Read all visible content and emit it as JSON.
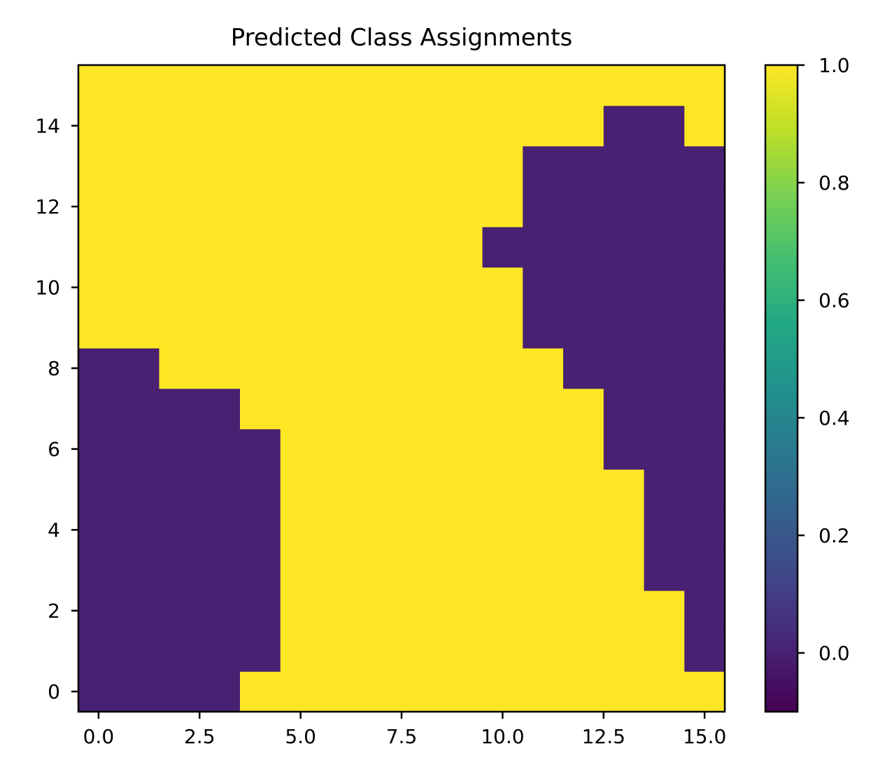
{
  "chart_data": {
    "type": "heatmap",
    "title": "Predicted Class Assignments",
    "xlabel": "",
    "ylabel": "",
    "origin": "lower",
    "xlim": [
      -0.5,
      15.5
    ],
    "ylim": [
      -0.5,
      15.5
    ],
    "x_ticks": [
      0.0,
      2.5,
      5.0,
      7.5,
      10.0,
      12.5,
      15.0
    ],
    "x_tick_labels": [
      "0.0",
      "2.5",
      "5.0",
      "7.5",
      "10.0",
      "12.5",
      "15.0"
    ],
    "y_ticks": [
      0,
      2,
      4,
      6,
      8,
      10,
      12,
      14
    ],
    "y_tick_labels": [
      "0",
      "2",
      "4",
      "6",
      "8",
      "10",
      "12",
      "14"
    ],
    "colormap": "viridis",
    "clim": [
      -0.1,
      1.0
    ],
    "colorbar_ticks": [
      0.0,
      0.2,
      0.4,
      0.6,
      0.8,
      1.0
    ],
    "colorbar_tick_labels": [
      "0.0",
      "0.2",
      "0.4",
      "0.6",
      "0.8",
      "1.0"
    ],
    "class_colors": {
      "0": "#482173",
      "1": "#fde725"
    },
    "grid": [
      [
        0,
        0,
        0,
        0,
        1,
        1,
        1,
        1,
        1,
        1,
        1,
        1,
        1,
        1,
        1,
        1
      ],
      [
        0,
        0,
        0,
        0,
        0,
        1,
        1,
        1,
        1,
        1,
        1,
        1,
        1,
        1,
        1,
        0
      ],
      [
        0,
        0,
        0,
        0,
        0,
        1,
        1,
        1,
        1,
        1,
        1,
        1,
        1,
        1,
        1,
        0
      ],
      [
        0,
        0,
        0,
        0,
        0,
        1,
        1,
        1,
        1,
        1,
        1,
        1,
        1,
        1,
        0,
        0
      ],
      [
        0,
        0,
        0,
        0,
        0,
        1,
        1,
        1,
        1,
        1,
        1,
        1,
        1,
        1,
        0,
        0
      ],
      [
        0,
        0,
        0,
        0,
        0,
        1,
        1,
        1,
        1,
        1,
        1,
        1,
        1,
        1,
        0,
        0
      ],
      [
        0,
        0,
        0,
        0,
        0,
        1,
        1,
        1,
        1,
        1,
        1,
        1,
        1,
        0,
        0,
        0
      ],
      [
        0,
        0,
        0,
        0,
        1,
        1,
        1,
        1,
        1,
        1,
        1,
        1,
        1,
        0,
        0,
        0
      ],
      [
        0,
        0,
        1,
        1,
        1,
        1,
        1,
        1,
        1,
        1,
        1,
        1,
        0,
        0,
        0,
        0
      ],
      [
        1,
        1,
        1,
        1,
        1,
        1,
        1,
        1,
        1,
        1,
        1,
        0,
        0,
        0,
        0,
        0
      ],
      [
        1,
        1,
        1,
        1,
        1,
        1,
        1,
        1,
        1,
        1,
        1,
        0,
        0,
        0,
        0,
        0
      ],
      [
        1,
        1,
        1,
        1,
        1,
        1,
        1,
        1,
        1,
        1,
        0,
        0,
        0,
        0,
        0,
        0
      ],
      [
        1,
        1,
        1,
        1,
        1,
        1,
        1,
        1,
        1,
        1,
        1,
        0,
        0,
        0,
        0,
        0
      ],
      [
        1,
        1,
        1,
        1,
        1,
        1,
        1,
        1,
        1,
        1,
        1,
        0,
        0,
        0,
        0,
        0
      ],
      [
        1,
        1,
        1,
        1,
        1,
        1,
        1,
        1,
        1,
        1,
        1,
        1,
        1,
        0,
        0,
        1
      ],
      [
        1,
        1,
        1,
        1,
        1,
        1,
        1,
        1,
        1,
        1,
        1,
        1,
        1,
        1,
        1,
        1
      ]
    ]
  }
}
